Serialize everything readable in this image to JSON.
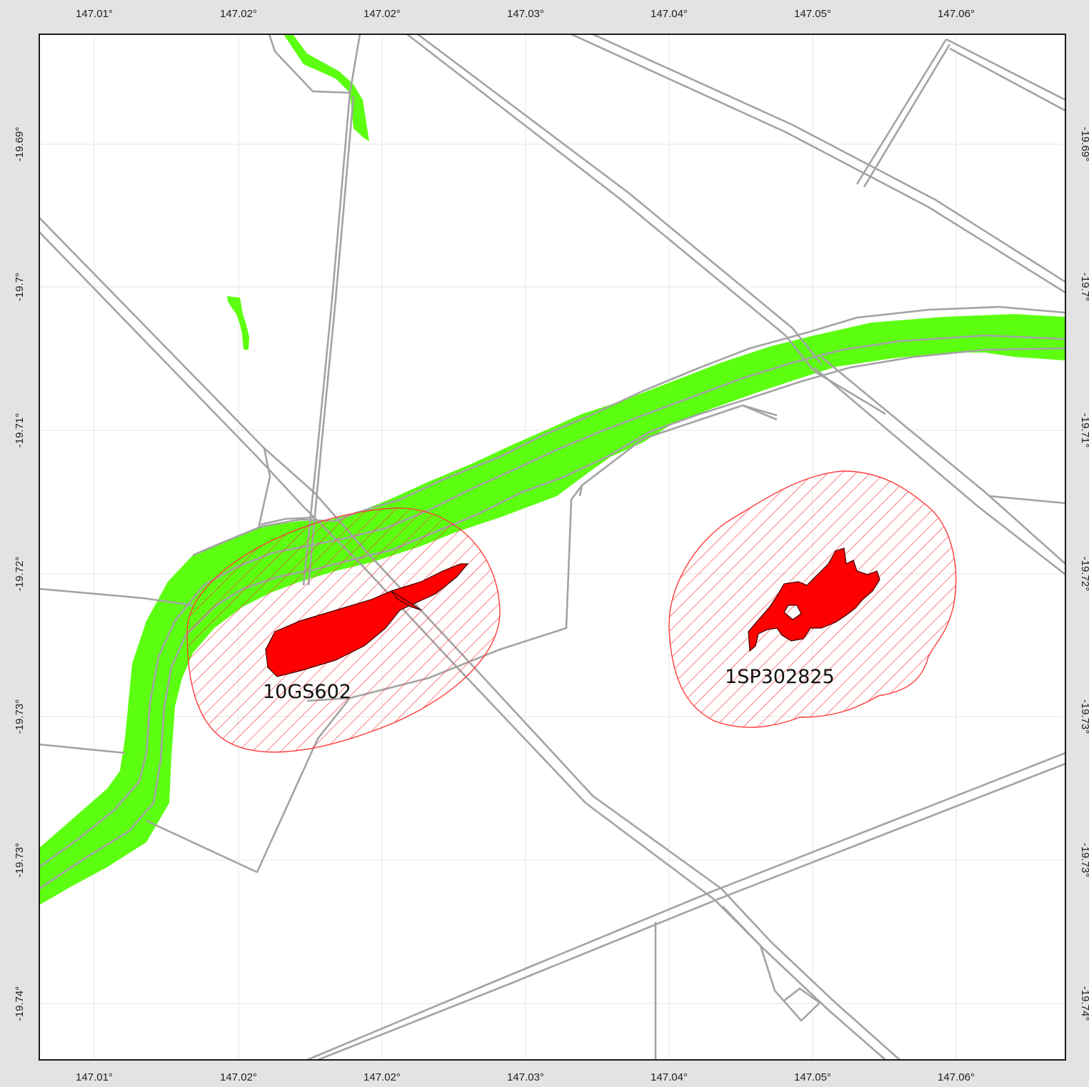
{
  "map": {
    "x_ticks": [
      "147.01°",
      "147.02°",
      "147.02°",
      "147.03°",
      "147.04°",
      "147.05°",
      "147.06°"
    ],
    "y_ticks": [
      "-19.69°",
      "-19.7°",
      "-19.71°",
      "-19.72°",
      "-19.73°",
      "-19.73°",
      "-19.74°"
    ],
    "features": [
      {
        "label": "10GS602"
      },
      {
        "label": "1SP302825"
      }
    ],
    "colors": {
      "frame_background": "#e3e3e3",
      "map_background": "#ffffff",
      "grid": "#e6e6e6",
      "roads": "#a3a3a3",
      "vegetation": "#5cff0f",
      "target_fill": "#ff0000",
      "buffer_hatch": "#ff3a3a"
    }
  }
}
